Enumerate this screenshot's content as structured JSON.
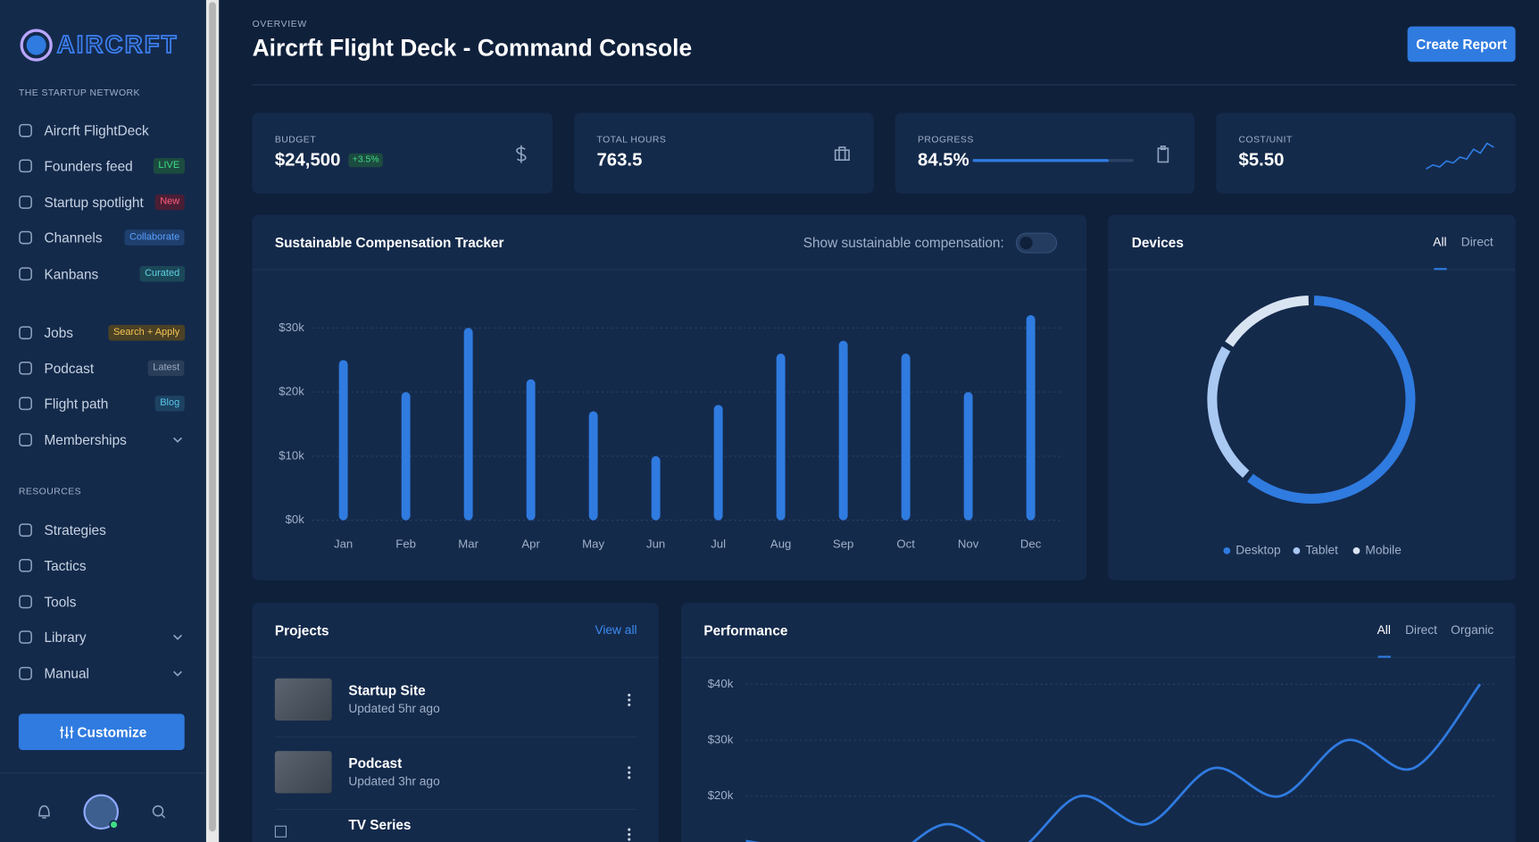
{
  "sidebar": {
    "logo": "AIRCRFT",
    "section1": "THE STARTUP NETWORK",
    "nav1": [
      {
        "label": "Aircrft FlightDeck"
      },
      {
        "label": "Founders feed",
        "badge": "LIVE"
      },
      {
        "label": "Startup spotlight",
        "badge": "New"
      },
      {
        "label": "Channels",
        "badge": "Collaborate"
      },
      {
        "label": "Kanbans",
        "badge": "Curated"
      }
    ],
    "nav2": [
      {
        "label": "Jobs",
        "badge": "Search + Apply"
      },
      {
        "label": "Podcast",
        "badge": "Latest"
      },
      {
        "label": "Flight path",
        "badge": "Blog"
      },
      {
        "label": "Memberships",
        "expandable": true
      }
    ],
    "section2": "RESOURCES",
    "nav3": [
      {
        "label": "Strategies"
      },
      {
        "label": "Tactics"
      },
      {
        "label": "Tools"
      },
      {
        "label": "Library",
        "expandable": true
      },
      {
        "label": "Manual",
        "expandable": true
      }
    ],
    "button": "Customize"
  },
  "header": {
    "eyebrow": "OVERVIEW",
    "title": "Aircrft Flight Deck - Command Console",
    "button": "Create Report"
  },
  "stats": [
    {
      "label": "BUDGET",
      "value": "$24,500",
      "delta": "+3.5%"
    },
    {
      "label": "TOTAL HOURS",
      "value": "763.5"
    },
    {
      "label": "PROGRESS",
      "value": "84.5%",
      "progress": 84.5
    },
    {
      "label": "COST/UNIT",
      "value": "$5.50",
      "sparkline": [
        2,
        3,
        2.5,
        4,
        3.5,
        5,
        4.5,
        7,
        6,
        8.5,
        7.5
      ]
    }
  ],
  "chart_data": [
    {
      "type": "bar",
      "title": "Sustainable Compensation Tracker",
      "toggle_label": "Show sustainable compensation:",
      "categories": [
        "Jan",
        "Feb",
        "Mar",
        "Apr",
        "May",
        "Jun",
        "Jul",
        "Aug",
        "Sep",
        "Oct",
        "Nov",
        "Dec"
      ],
      "values": [
        25,
        20,
        30,
        22,
        17,
        10,
        18,
        26,
        28,
        26,
        20,
        32
      ],
      "color": "#2f7be0",
      "ylim": [
        0,
        32
      ],
      "yticks": [
        {
          "value": 0,
          "label": "$0k"
        },
        {
          "value": 10,
          "label": "$10k"
        },
        {
          "value": 20,
          "label": "$20k"
        },
        {
          "value": 30,
          "label": "$30k"
        }
      ],
      "grid": true
    },
    {
      "type": "donut",
      "title": "Devices",
      "tabs": [
        "All",
        "Direct"
      ],
      "categories": [
        "Desktop",
        "Tablet",
        "Mobile"
      ],
      "values": [
        61,
        23,
        16
      ],
      "colors": [
        "#2f7be0",
        "#a9c8f2",
        "#d9e4f2"
      ]
    },
    {
      "type": "line",
      "title": "Performance",
      "tabs": [
        "All",
        "Direct",
        "Organic"
      ],
      "categories": [
        null,
        null,
        null,
        null,
        null,
        null,
        null,
        null,
        null,
        null,
        null,
        null
      ],
      "values": [
        12,
        10,
        8,
        15,
        10,
        20,
        15,
        25,
        20,
        30,
        25,
        40
      ],
      "color": "#2f7be0",
      "ylim": [
        0,
        42
      ],
      "yticks": [
        {
          "value": 20,
          "label": "$20k"
        },
        {
          "value": 30,
          "label": "$30k"
        },
        {
          "value": 40,
          "label": "$40k"
        }
      ],
      "grid": true
    }
  ],
  "projects": {
    "title": "Projects",
    "link": "View all",
    "items": [
      {
        "name": "Startup Site",
        "updated": "Updated 5hr ago"
      },
      {
        "name": "Podcast",
        "updated": "Updated 3hr ago"
      },
      {
        "name": "TV Series"
      }
    ]
  }
}
